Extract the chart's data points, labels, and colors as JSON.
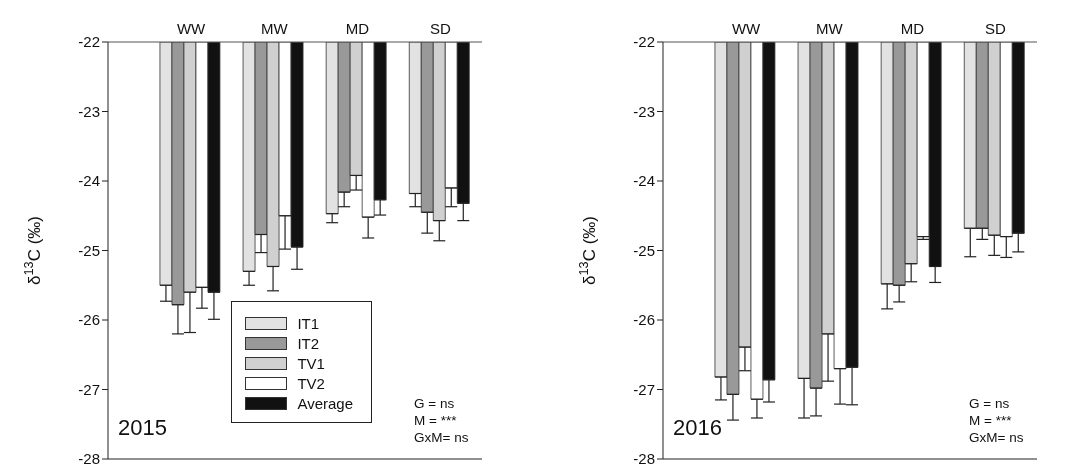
{
  "chart_data": [
    {
      "type": "bar",
      "categories": [
        "WW",
        "MW",
        "MD",
        "SD"
      ],
      "ylabel": "δ$^{13}$C (‰)",
      "ylim": [
        -28,
        -22
      ],
      "yticks": [
        -28,
        -27,
        -26,
        -25,
        -24,
        -23,
        -22
      ],
      "legend": "bottom",
      "grid": false,
      "series": [
        {
          "name": "IT1",
          "color": "#e2e2e2",
          "values": [
            -25.5,
            -25.3,
            -24.47,
            -24.18
          ],
          "errors": [
            [
              -25.73,
              -25.5
            ],
            [
              -25.5,
              -25.3
            ],
            [
              -24.6,
              -24.47
            ],
            [
              -24.37,
              -24.18
            ]
          ]
        },
        {
          "name": "IT2",
          "color": "#999999",
          "values": [
            -25.78,
            -24.77,
            -24.16,
            -24.45
          ],
          "errors": [
            [
              -26.2,
              -25.78
            ],
            [
              -25.03,
              -24.77
            ],
            [
              -24.37,
              -24.16
            ],
            [
              -24.75,
              -24.45
            ]
          ]
        },
        {
          "name": "TV1",
          "color": "#d0d0d0",
          "values": [
            -25.6,
            -25.23,
            -23.92,
            -24.57
          ],
          "errors": [
            [
              -26.18,
              -25.6
            ],
            [
              -25.58,
              -25.23
            ],
            [
              -24.13,
              -23.92
            ],
            [
              -24.86,
              -24.57
            ]
          ]
        },
        {
          "name": "TV2",
          "color": "#ffffff",
          "values": [
            -25.53,
            -24.5,
            -24.52,
            -24.1
          ],
          "errors": [
            [
              -25.83,
              -25.53
            ],
            [
              -24.98,
              -24.5
            ],
            [
              -24.82,
              -24.52
            ],
            [
              -24.37,
              -24.1
            ]
          ]
        },
        {
          "name": "Average",
          "color": "#111111",
          "values": [
            -25.6,
            -24.95,
            -24.27,
            -24.32
          ],
          "errors": [
            [
              -25.99,
              -25.6
            ],
            [
              -25.27,
              -24.95
            ],
            [
              -24.49,
              -24.27
            ],
            [
              -24.57,
              -24.32
            ]
          ]
        }
      ],
      "annotations": [
        "2015",
        "G = ns",
        "M = ***",
        "GxM= ns"
      ]
    },
    {
      "type": "bar",
      "categories": [
        "WW",
        "MW",
        "MD",
        "SD"
      ],
      "ylabel": "δ$^{13}$C (‰)",
      "ylim": [
        -28,
        -22
      ],
      "yticks": [
        -28,
        -27,
        -26,
        -25,
        -24,
        -23,
        -22
      ],
      "grid": false,
      "series": [
        {
          "color": "#e2e2e2",
          "values": [
            -26.82,
            -26.84,
            -25.48,
            -24.68
          ],
          "errors": [
            [
              -27.15,
              -26.82
            ],
            [
              -27.41,
              -26.84
            ],
            [
              -25.84,
              -25.48
            ],
            [
              -25.09,
              -24.68
            ]
          ]
        },
        {
          "color": "#999999",
          "values": [
            -27.07,
            -26.98,
            -25.5,
            -24.68
          ],
          "errors": [
            [
              -27.44,
              -27.07
            ],
            [
              -27.38,
              -26.98
            ],
            [
              -25.74,
              -25.5
            ],
            [
              -24.84,
              -24.68
            ]
          ]
        },
        {
          "color": "#d0d0d0",
          "values": [
            -26.39,
            -26.2,
            -25.19,
            -24.78
          ],
          "errors": [
            [
              -26.73,
              -26.39
            ],
            [
              -26.88,
              -26.2
            ],
            [
              -25.45,
              -25.19
            ],
            [
              -25.07,
              -24.78
            ]
          ]
        },
        {
          "color": "#ffffff",
          "values": [
            -27.14,
            -26.7,
            -24.8,
            -24.8
          ],
          "errors": [
            [
              -27.41,
              -27.14
            ],
            [
              -27.21,
              -26.7
            ],
            [
              -24.84,
              -24.8
            ],
            [
              -25.1,
              -24.8
            ]
          ]
        },
        {
          "color": "#111111",
          "values": [
            -26.86,
            -26.68,
            -25.23,
            -24.75
          ],
          "errors": [
            [
              -27.18,
              -26.86
            ],
            [
              -27.22,
              -26.68
            ],
            [
              -25.46,
              -25.23
            ],
            [
              -25.02,
              -24.75
            ]
          ]
        }
      ],
      "annotations": [
        "2016",
        "G = ns",
        "M = ***",
        "GxM= ns"
      ]
    }
  ]
}
